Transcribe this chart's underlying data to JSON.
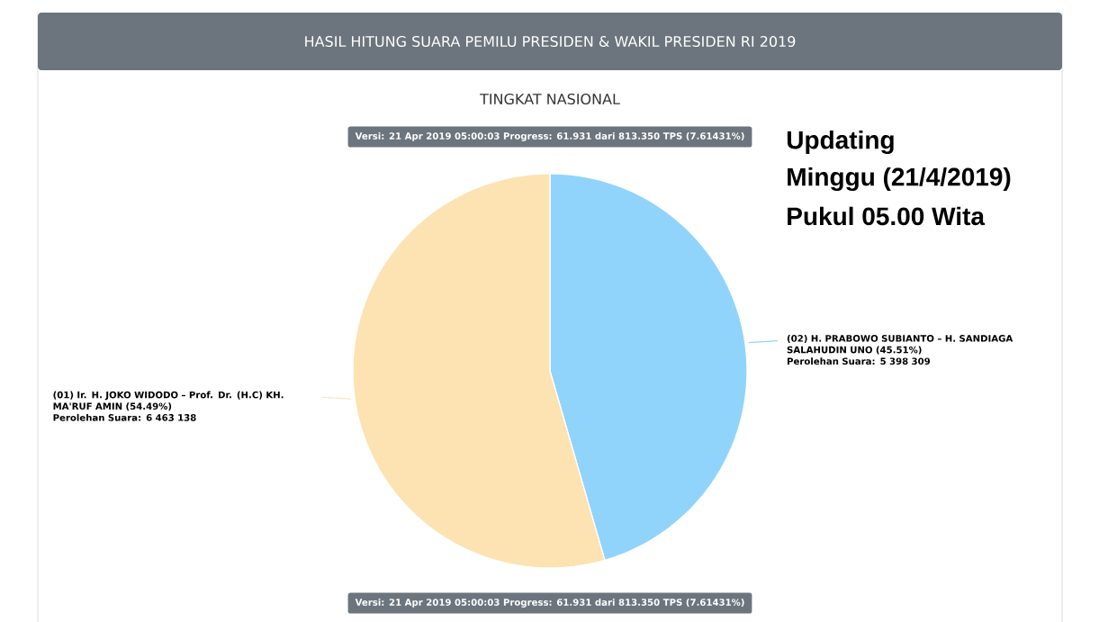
{
  "chart_data": {
    "type": "pie",
    "title": "HASIL HITUNG SUARA PEMILU PRESIDEN & WAKIL PRESIDEN RI 2019",
    "subtitle": "TINGKAT NASIONAL",
    "categories": [
      "(02) H. PRABOWO SUBIANTO – H. SANDIAGA SALAHUDIN UNO (45.51%)",
      "(01) Ir. H. JOKO WIDODO – Prof. Dr. (H.C) KH. MA'RUF AMIN (54.49%)"
    ],
    "values": [
      5398309,
      6463138
    ],
    "value_labels": [
      "Perolehan Suara: 5 398 309",
      "Perolehan Suara: 6 463 138"
    ],
    "colors": [
      "#90d4fb",
      "#fde2b2"
    ],
    "annotations": [
      "Versi: 21 Apr 2019 05:00:03 Progress: 61.931 dari 813.350 TPS (7.61431%)",
      "Versi: 21 Apr 2019 05:00:03 Progress: 61.931 dari 813.350 TPS (7.61431%)",
      "Updating",
      "Minggu (21/4/2019)",
      "Pukul 05.00 Wita"
    ]
  }
}
